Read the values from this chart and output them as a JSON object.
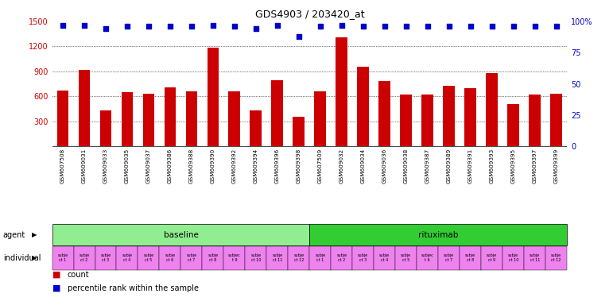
{
  "title": "GDS4903 / 203420_at",
  "bar_labels": [
    "GSM607508",
    "GSM609031",
    "GSM609033",
    "GSM609035",
    "GSM609037",
    "GSM609386",
    "GSM609388",
    "GSM609390",
    "GSM609392",
    "GSM609394",
    "GSM609396",
    "GSM609398",
    "GSM607509",
    "GSM609032",
    "GSM609034",
    "GSM609036",
    "GSM609038",
    "GSM609387",
    "GSM609389",
    "GSM609391",
    "GSM609393",
    "GSM609395",
    "GSM609397",
    "GSM609399"
  ],
  "bar_values": [
    670,
    920,
    430,
    650,
    630,
    710,
    660,
    1185,
    660,
    430,
    790,
    360,
    660,
    1310,
    960,
    780,
    620,
    620,
    730,
    700,
    875,
    510,
    620,
    630
  ],
  "percentile_values": [
    97,
    97,
    94,
    96,
    96,
    96,
    96,
    97,
    96,
    94,
    97,
    88,
    96,
    97,
    96,
    96,
    96,
    96,
    96,
    96,
    96,
    96,
    96,
    96
  ],
  "bar_color": "#cc0000",
  "dot_color": "#0000cc",
  "ylim_left": [
    0,
    1500
  ],
  "ylim_right": [
    0,
    100
  ],
  "yticks_left": [
    300,
    600,
    900,
    1200,
    1500
  ],
  "yticks_right": [
    0,
    25,
    50,
    75,
    100
  ],
  "baseline_count": 12,
  "rituximab_count": 12,
  "individual_labels_baseline": [
    "subje\nct 1",
    "subje\nct 2",
    "subje\nct 3",
    "subje\nct 4",
    "subje\nct 5",
    "subje\nct 6",
    "subje\nct 7",
    "subje\nct 8",
    "subjec\nt 9",
    "subje\nct 10",
    "subje\nct 11",
    "subje\nct 12"
  ],
  "individual_labels_rituximab": [
    "subje\nct 1",
    "subje\nct 2",
    "subje\nct 3",
    "subje\nct 4",
    "subje\nct 5",
    "subjec\nt 6",
    "subje\nct 7",
    "subje\nct 8",
    "subje\nct 9",
    "subje\nct 10",
    "subje\nct 11",
    "subje\nct 12"
  ],
  "baseline_color": "#90ee90",
  "rituximab_color": "#32cd32",
  "individual_color": "#ee82ee",
  "plot_bg_color": "#d3d3d3",
  "white": "#ffffff"
}
